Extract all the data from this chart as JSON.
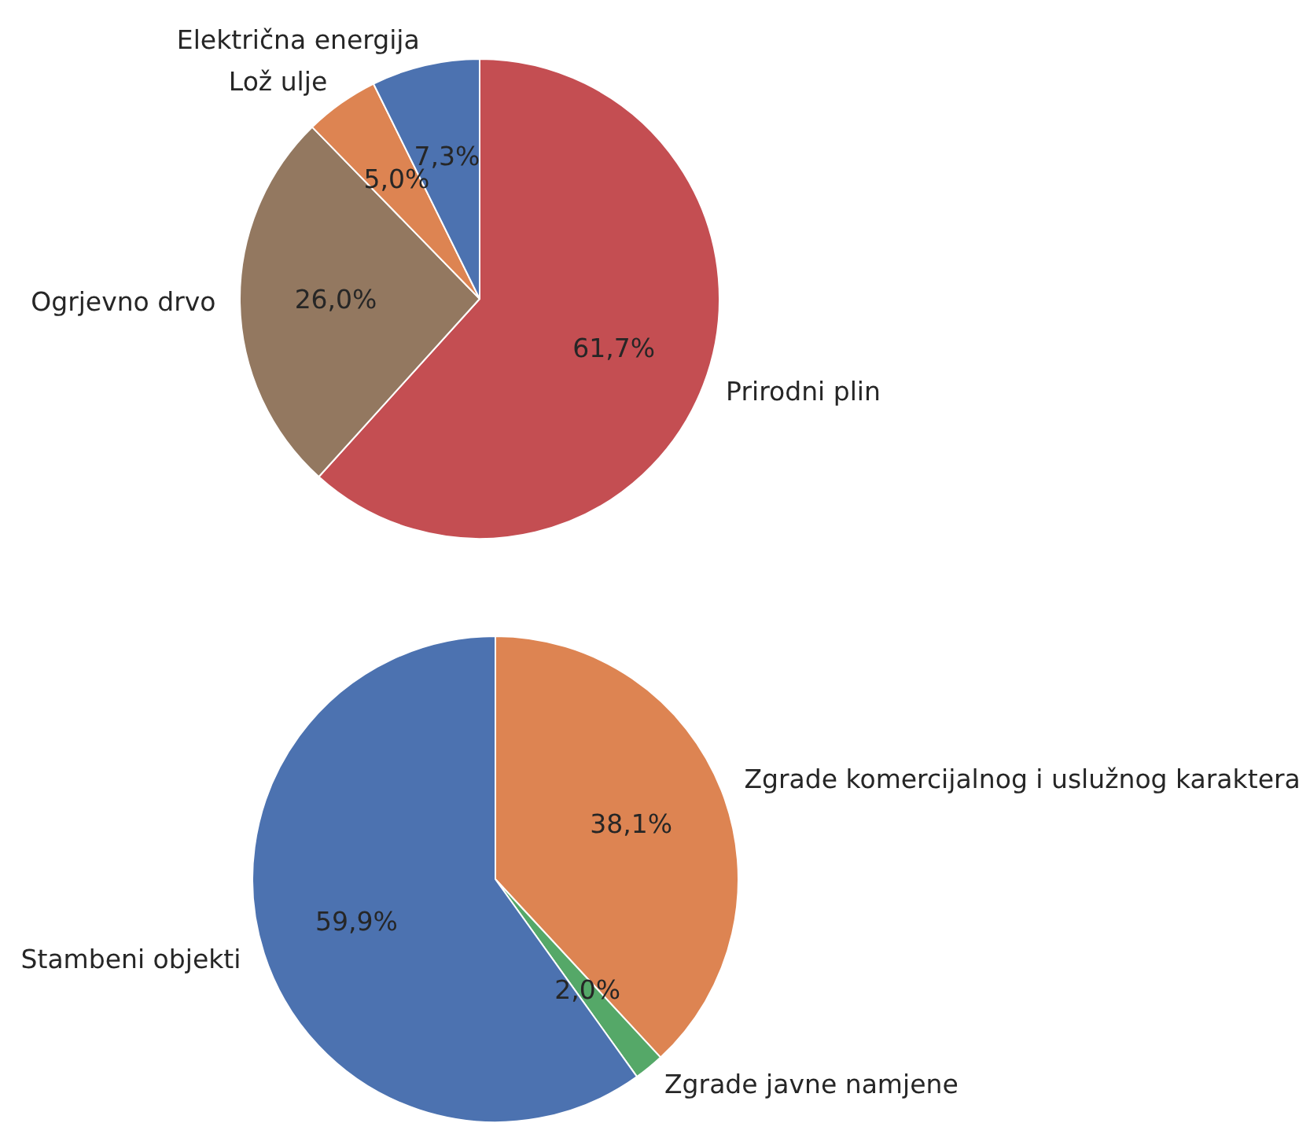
{
  "chart_data": [
    {
      "type": "pie",
      "categories": [
        "Prirodni plin",
        "Ogrjevno drvo",
        "Lož ulje",
        "Električna energija"
      ],
      "values": [
        61.7,
        26.0,
        5.0,
        7.3
      ],
      "colors": [
        "#c44e52",
        "#937860",
        "#dd8452",
        "#4c72b0"
      ],
      "value_labels": [
        "61,7%",
        "26,0%",
        "5,0%",
        "7,3%"
      ]
    },
    {
      "type": "pie",
      "categories": [
        "Zgrade komercijalnog i uslužnog karaktera",
        "Zgrade javne namjene",
        "Stambeni objekti"
      ],
      "values": [
        38.1,
        2.0,
        59.9
      ],
      "colors": [
        "#dd8452",
        "#55a868",
        "#4c72b0"
      ],
      "value_labels": [
        "38,1%",
        "2,0%",
        "59,9%"
      ]
    }
  ]
}
